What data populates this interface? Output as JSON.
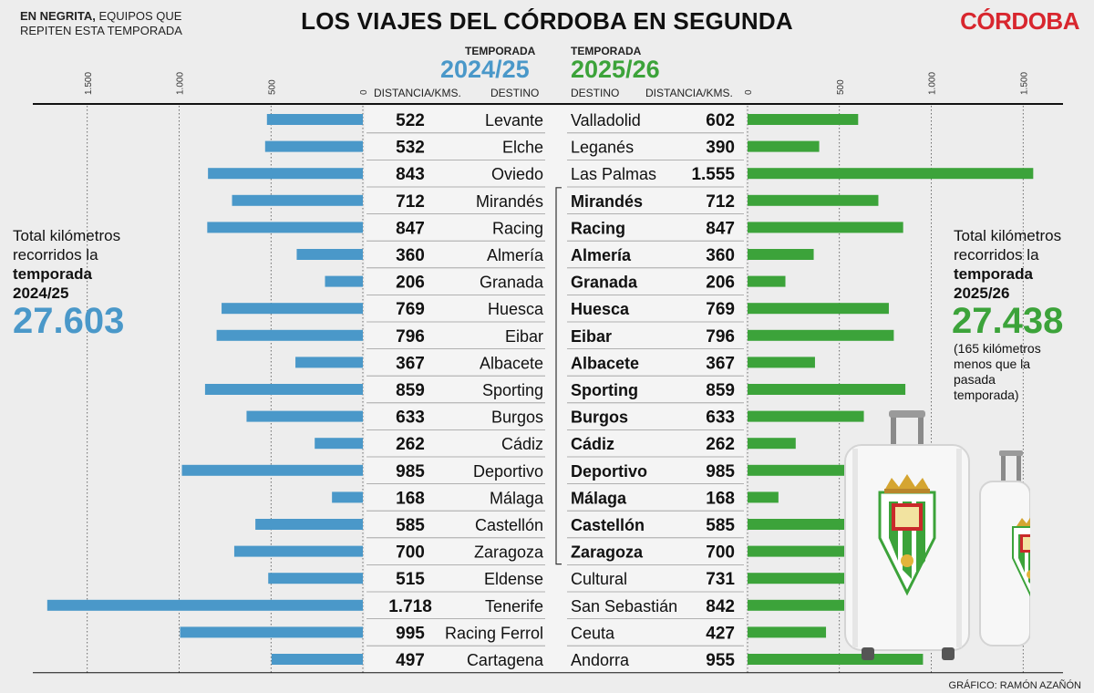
{
  "header": {
    "note_bold": "EN NEGRITA,",
    "note_rest_1": "EQUIPOS QUE",
    "note_rest_2": "REPITEN ESTA TEMPORADA",
    "title": "LOS VIAJES DEL CÓRDOBA EN SEGUNDA",
    "brand": "CÓRDOBA"
  },
  "left": {
    "season_tag": "TEMPORADA",
    "season": "2024/25",
    "col_distance": "DISTANCIA/KMS.",
    "col_dest": "DESTINO",
    "total_line1": "Total kilómetros",
    "total_line2": "recorridos la",
    "total_line3": "temporada",
    "total_line4": "2024/25",
    "total": "27.603"
  },
  "right": {
    "season_tag": "TEMPORADA",
    "season": "2025/26",
    "col_dest": "DESTINO",
    "col_distance": "DISTANCIA/KMS.",
    "total_line1": "Total kilómetros",
    "total_line2": "recorridos la",
    "total_line3": "temporada",
    "total_line4": "2025/26",
    "total": "27.438",
    "note_1": "(165 kilómetros",
    "note_2": "menos que la",
    "note_3": "pasada",
    "note_4": "temporada)"
  },
  "credit": "GRÁFICO: RAMÓN AZAÑÓN",
  "colors": {
    "blue": "#4a98c9",
    "green": "#3ca33a",
    "brand": "#d8262e"
  },
  "chart_data": {
    "type": "bar",
    "orientation": "horizontal-butterfly",
    "axis_ticks": [
      0,
      500,
      1000,
      1500
    ],
    "axis_tick_labels": [
      "0",
      "500",
      "1.000",
      "1.500"
    ],
    "xlim": [
      0,
      1900
    ],
    "series": [
      {
        "name": "2024/25",
        "color": "#4a98c9",
        "rows": [
          {
            "dest": "Levante",
            "km": 522,
            "km_label": "522",
            "repeat": false
          },
          {
            "dest": "Elche",
            "km": 532,
            "km_label": "532",
            "repeat": false
          },
          {
            "dest": "Oviedo",
            "km": 843,
            "km_label": "843",
            "repeat": false
          },
          {
            "dest": "Mirandés",
            "km": 712,
            "km_label": "712",
            "repeat": true
          },
          {
            "dest": "Racing",
            "km": 847,
            "km_label": "847",
            "repeat": true
          },
          {
            "dest": "Almería",
            "km": 360,
            "km_label": "360",
            "repeat": true
          },
          {
            "dest": "Granada",
            "km": 206,
            "km_label": "206",
            "repeat": true
          },
          {
            "dest": "Huesca",
            "km": 769,
            "km_label": "769",
            "repeat": true
          },
          {
            "dest": "Eibar",
            "km": 796,
            "km_label": "796",
            "repeat": true
          },
          {
            "dest": "Albacete",
            "km": 367,
            "km_label": "367",
            "repeat": true
          },
          {
            "dest": "Sporting",
            "km": 859,
            "km_label": "859",
            "repeat": true
          },
          {
            "dest": "Burgos",
            "km": 633,
            "km_label": "633",
            "repeat": true
          },
          {
            "dest": "Cádiz",
            "km": 262,
            "km_label": "262",
            "repeat": true
          },
          {
            "dest": "Deportivo",
            "km": 985,
            "km_label": "985",
            "repeat": true
          },
          {
            "dest": "Málaga",
            "km": 168,
            "km_label": "168",
            "repeat": true
          },
          {
            "dest": "Castellón",
            "km": 585,
            "km_label": "585",
            "repeat": true
          },
          {
            "dest": "Zaragoza",
            "km": 700,
            "km_label": "700",
            "repeat": true
          },
          {
            "dest": "Eldense",
            "km": 515,
            "km_label": "515",
            "repeat": false
          },
          {
            "dest": "Tenerife",
            "km": 1718,
            "km_label": "1.718",
            "repeat": false
          },
          {
            "dest": "Racing Ferrol",
            "km": 995,
            "km_label": "995",
            "repeat": false
          },
          {
            "dest": "Cartagena",
            "km": 497,
            "km_label": "497",
            "repeat": false
          }
        ]
      },
      {
        "name": "2025/26",
        "color": "#3ca33a",
        "rows": [
          {
            "dest": "Valladolid",
            "km": 602,
            "km_label": "602",
            "repeat": false
          },
          {
            "dest": "Leganés",
            "km": 390,
            "km_label": "390",
            "repeat": false
          },
          {
            "dest": "Las Palmas",
            "km": 1555,
            "km_label": "1.555",
            "repeat": false
          },
          {
            "dest": "Mirandés",
            "km": 712,
            "km_label": "712",
            "repeat": true
          },
          {
            "dest": "Racing",
            "km": 847,
            "km_label": "847",
            "repeat": true
          },
          {
            "dest": "Almería",
            "km": 360,
            "km_label": "360",
            "repeat": true
          },
          {
            "dest": "Granada",
            "km": 206,
            "km_label": "206",
            "repeat": true
          },
          {
            "dest": "Huesca",
            "km": 769,
            "km_label": "769",
            "repeat": true
          },
          {
            "dest": "Eibar",
            "km": 796,
            "km_label": "796",
            "repeat": true
          },
          {
            "dest": "Albacete",
            "km": 367,
            "km_label": "367",
            "repeat": true
          },
          {
            "dest": "Sporting",
            "km": 859,
            "km_label": "859",
            "repeat": true
          },
          {
            "dest": "Burgos",
            "km": 633,
            "km_label": "633",
            "repeat": true
          },
          {
            "dest": "Cádiz",
            "km": 262,
            "km_label": "262",
            "repeat": true
          },
          {
            "dest": "Deportivo",
            "km": 985,
            "km_label": "985",
            "repeat": true
          },
          {
            "dest": "Málaga",
            "km": 168,
            "km_label": "168",
            "repeat": true
          },
          {
            "dest": "Castellón",
            "km": 585,
            "km_label": "585",
            "repeat": true
          },
          {
            "dest": "Zaragoza",
            "km": 700,
            "km_label": "700",
            "repeat": true
          },
          {
            "dest": "Cultural",
            "km": 731,
            "km_label": "731",
            "repeat": false
          },
          {
            "dest": "San Sebastián",
            "km": 842,
            "km_label": "842",
            "repeat": false
          },
          {
            "dest": "Ceuta",
            "km": 427,
            "km_label": "427",
            "repeat": false
          },
          {
            "dest": "Andorra",
            "km": 955,
            "km_label": "955",
            "repeat": false
          }
        ]
      }
    ]
  }
}
